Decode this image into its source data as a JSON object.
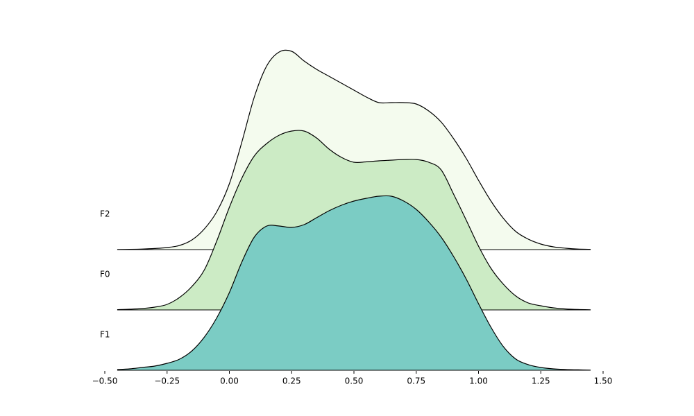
{
  "chart_data": {
    "type": "ridgeline",
    "x": [
      -0.45,
      -0.4,
      -0.35,
      -0.3,
      -0.25,
      -0.2,
      -0.15,
      -0.1,
      -0.05,
      0,
      0.05,
      0.1,
      0.15,
      0.2,
      0.25,
      0.3,
      0.35,
      0.4,
      0.45,
      0.5,
      0.55,
      0.6,
      0.65,
      0.7,
      0.75,
      0.8,
      0.85,
      0.9,
      0.95,
      1.0,
      1.05,
      1.1,
      1.15,
      1.2,
      1.25,
      1.3,
      1.35,
      1.4,
      1.45
    ],
    "series": [
      {
        "name": "F2",
        "color": "#f4fbee",
        "values": [
          0.001,
          0.002,
          0.004,
          0.008,
          0.015,
          0.03,
          0.07,
          0.15,
          0.275,
          0.475,
          0.775,
          1.1,
          1.325,
          1.425,
          1.43,
          1.36,
          1.3,
          1.25,
          1.2,
          1.15,
          1.1,
          1.06,
          1.06,
          1.06,
          1.05,
          1.0,
          0.92,
          0.8,
          0.66,
          0.5,
          0.35,
          0.225,
          0.13,
          0.075,
          0.04,
          0.02,
          0.01,
          0.004,
          0.002
        ]
      },
      {
        "name": "F0",
        "color": "#ccebc5",
        "values": [
          0.002,
          0.005,
          0.01,
          0.02,
          0.04,
          0.09,
          0.17,
          0.29,
          0.5,
          0.74,
          0.95,
          1.11,
          1.2,
          1.26,
          1.29,
          1.29,
          1.24,
          1.16,
          1.1,
          1.065,
          1.068,
          1.075,
          1.08,
          1.085,
          1.085,
          1.065,
          1.01,
          0.835,
          0.65,
          0.46,
          0.3,
          0.185,
          0.1,
          0.05,
          0.03,
          0.015,
          0.007,
          0.003,
          0.001
        ]
      },
      {
        "name": "F1",
        "color": "#7bccc4",
        "values": [
          0.005,
          0.01,
          0.02,
          0.03,
          0.05,
          0.08,
          0.14,
          0.24,
          0.38,
          0.56,
          0.78,
          0.96,
          1.04,
          1.04,
          1.03,
          1.05,
          1.1,
          1.15,
          1.19,
          1.22,
          1.24,
          1.255,
          1.255,
          1.22,
          1.16,
          1.07,
          0.96,
          0.82,
          0.66,
          0.48,
          0.31,
          0.17,
          0.08,
          0.04,
          0.02,
          0.01,
          0.005,
          0.003,
          0.001
        ]
      }
    ],
    "xlim": [
      -0.5,
      1.5
    ],
    "xticks": [
      {
        "value": -0.5,
        "label": "−0.50"
      },
      {
        "value": -0.25,
        "label": "−0.25"
      },
      {
        "value": 0,
        "label": "0.00"
      },
      {
        "value": 0.25,
        "label": "0.25"
      },
      {
        "value": 0.5,
        "label": "0.50"
      },
      {
        "value": 0.75,
        "label": "0.75"
      },
      {
        "value": 1.0,
        "label": "1.00"
      },
      {
        "value": 1.25,
        "label": "1.25"
      },
      {
        "value": 1.5,
        "label": "1.50"
      }
    ]
  }
}
